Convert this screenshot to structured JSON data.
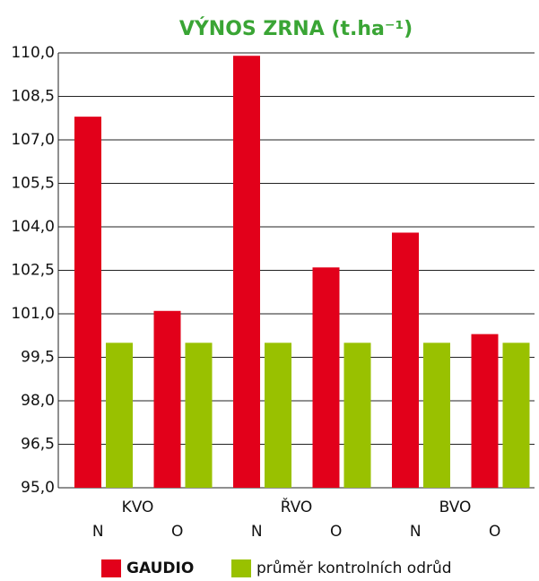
{
  "chart_data": {
    "type": "bar",
    "title": "VÝNOS ZRNA (t.ha⁻¹)",
    "groups": [
      "KVO",
      "ŘVO",
      "BVO"
    ],
    "categories": [
      "N",
      "O",
      "N",
      "O",
      "N",
      "O"
    ],
    "series": [
      {
        "name": "GAUDIO",
        "color": "#e2001a",
        "values": [
          107.8,
          101.1,
          109.9,
          102.6,
          103.8,
          100.3
        ]
      },
      {
        "name": "průměr kontrolních odrůd",
        "color": "#99c100",
        "values": [
          100.0,
          100.0,
          100.0,
          100.0,
          100.0,
          100.0
        ]
      }
    ],
    "ylim": [
      95,
      110
    ],
    "yticks": [
      {
        "value": 95,
        "label": "95,0"
      },
      {
        "value": 96.5,
        "label": "96,5"
      },
      {
        "value": 98,
        "label": "98,0"
      },
      {
        "value": 99.5,
        "label": "99,5"
      },
      {
        "value": 101,
        "label": "101,0"
      },
      {
        "value": 102.5,
        "label": "102,5"
      },
      {
        "value": 104,
        "label": "104,0"
      },
      {
        "value": 105.5,
        "label": "105,5"
      },
      {
        "value": 107,
        "label": "107,0"
      },
      {
        "value": 108.5,
        "label": "108,5"
      },
      {
        "value": 110,
        "label": "110,0"
      }
    ],
    "grid": true
  }
}
